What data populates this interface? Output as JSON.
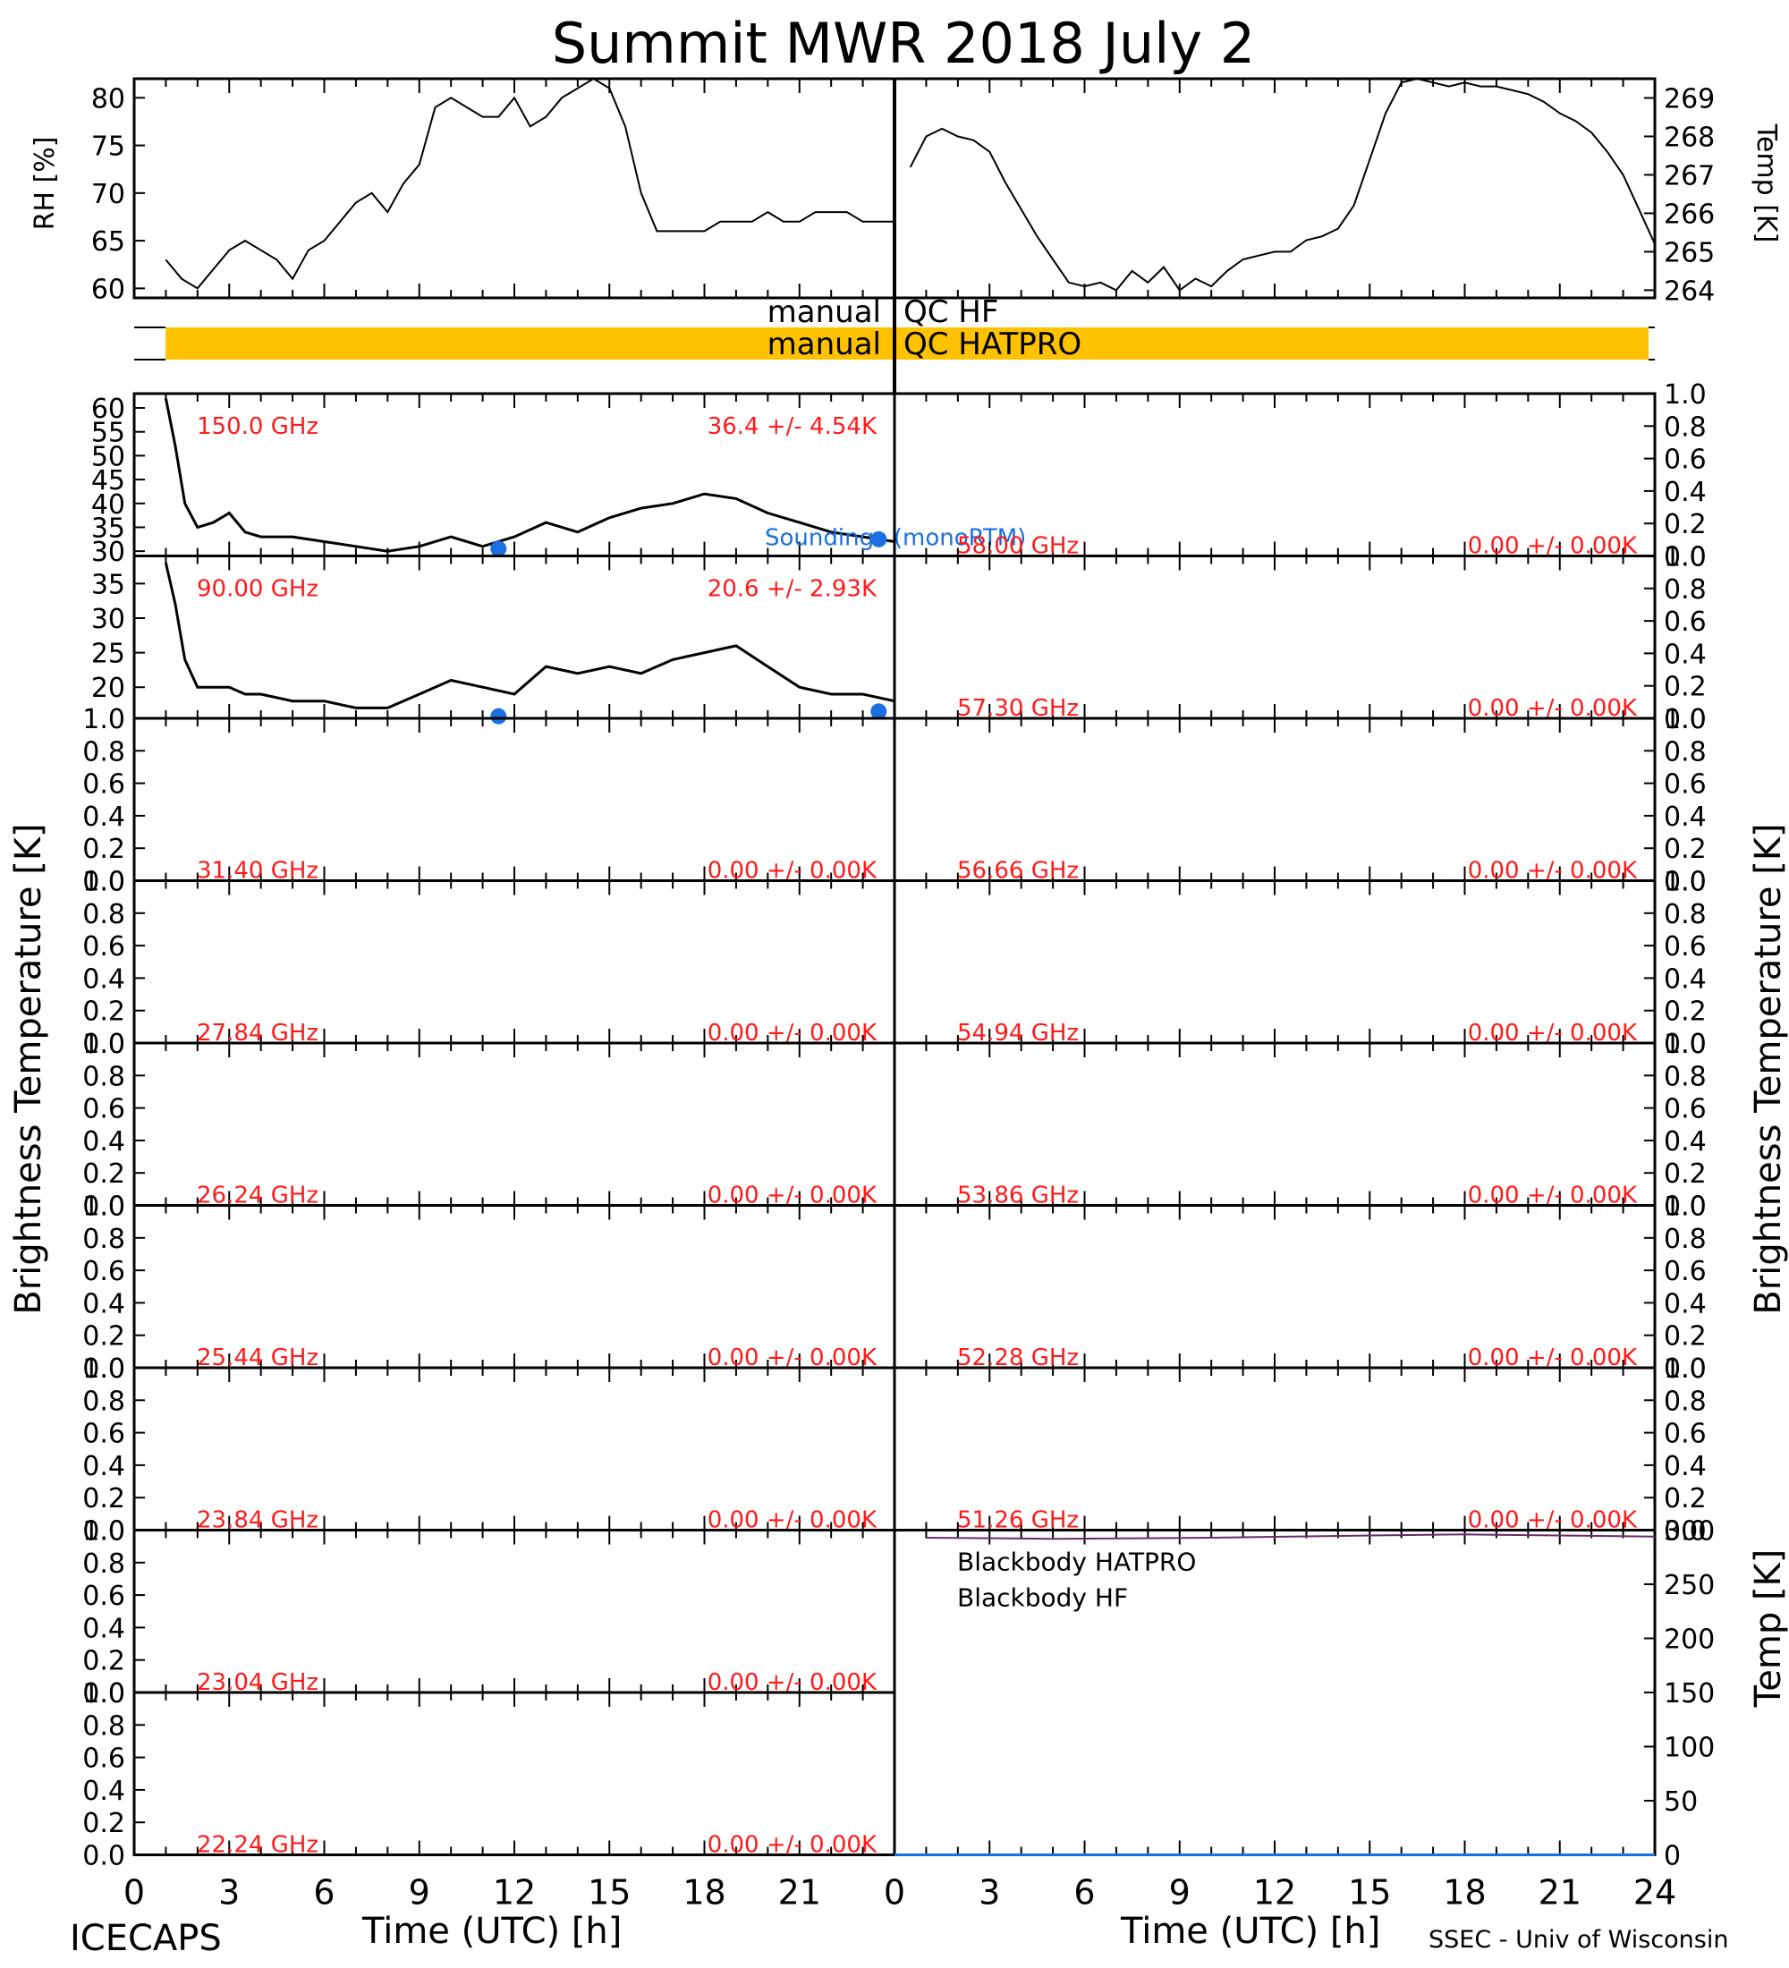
{
  "title": "Summit  MWR  2018  July   2",
  "footer": {
    "left": "ICECAPS",
    "xlabel": "Time (UTC) [h]",
    "right": "SSEC - Univ of Wisconsin"
  },
  "axis_labels": {
    "rh": "RH [%]",
    "temp_top": "Temp [K]",
    "brightness_left": "Brightness Temperature [K]",
    "brightness_right": "Brightness Temperature [K]",
    "temp_bottom": "Temp [K]"
  },
  "qc": {
    "hf_left": "manual",
    "hf_right": "QC HF",
    "hatpro_left": "manual",
    "hatpro_right": "QC HATPRO",
    "bar_color": "#ffc200"
  },
  "x_ticks": [
    "0",
    "3",
    "6",
    "9",
    "12",
    "15",
    "18",
    "21",
    "0",
    "3",
    "6",
    "9",
    "12",
    "15",
    "18",
    "21",
    "24"
  ],
  "labels": {
    "sounding": "Soundings (monoRTM)",
    "bb_hatpro": "Blackbody HATPRO",
    "bb_hf": "Blackbody HF"
  },
  "colors": {
    "data": "#000000",
    "label_red": "#ff1a1a",
    "sounding_blue": "#1b6fe0",
    "bb_hf": "#6b2a6b",
    "bb_hatpro": "#1b6fe0"
  },
  "chart_data": [
    {
      "type": "line",
      "title": "",
      "xlabel": "Time (UTC) [h]",
      "ylabel": "RH [%]",
      "xlim": [
        0,
        24
      ],
      "ylim": [
        59,
        82
      ],
      "yticks": [
        "60",
        "65",
        "70",
        "75",
        "80"
      ],
      "series": [
        {
          "x": [
            1,
            1.5,
            2,
            2.5,
            3,
            3.5,
            4,
            4.5,
            5,
            5.5,
            6,
            6.5,
            7,
            7.5,
            8,
            8.5,
            9,
            9.5,
            10,
            10.5,
            11,
            11.5,
            12,
            12.5,
            13,
            13.5,
            14,
            14.5,
            15,
            15.5,
            16,
            16.5,
            17,
            17.5,
            18,
            18.5,
            19,
            19.5,
            20,
            20.5,
            21,
            21.5,
            22,
            22.5,
            23,
            23.5,
            24
          ],
          "values": [
            63,
            61,
            60,
            62,
            64,
            65,
            64,
            63,
            61,
            64,
            65,
            67,
            69,
            70,
            68,
            71,
            73,
            79,
            80,
            79,
            78,
            78,
            80,
            77,
            78,
            80,
            81,
            82,
            81,
            77,
            70,
            66,
            66,
            66,
            66,
            67,
            67,
            67,
            68,
            67,
            67,
            68,
            68,
            68,
            67,
            67,
            67
          ]
        }
      ]
    },
    {
      "type": "line",
      "title": "",
      "xlabel": "Time (UTC) [h]",
      "ylabel": "Temp [K]",
      "xlim": [
        0,
        24
      ],
      "ylim": [
        263.8,
        269.5
      ],
      "yticks": [
        "264",
        "265",
        "266",
        "267",
        "268",
        "269"
      ],
      "series": [
        {
          "x": [
            0.5,
            1,
            1.5,
            2,
            2.5,
            3,
            3.5,
            4,
            4.5,
            5,
            5.5,
            6,
            6.5,
            7,
            7.5,
            8,
            8.5,
            9,
            9.5,
            10,
            10.5,
            11,
            11.5,
            12,
            12.5,
            13,
            13.5,
            14,
            14.5,
            15,
            15.5,
            16,
            16.5,
            17,
            17.5,
            18,
            18.5,
            19,
            19.5,
            20,
            20.5,
            21,
            21.5,
            22,
            22.5,
            23,
            23.5,
            24
          ],
          "values": [
            267.2,
            268,
            268.2,
            268,
            267.9,
            267.6,
            266.8,
            266.1,
            265.4,
            264.8,
            264.2,
            264.1,
            264.2,
            264.0,
            264.5,
            264.2,
            264.6,
            264.0,
            264.3,
            264.1,
            264.5,
            264.8,
            264.9,
            265.0,
            265.0,
            265.3,
            265.4,
            265.6,
            266.2,
            267.4,
            268.6,
            269.4,
            269.5,
            269.4,
            269.3,
            269.4,
            269.3,
            269.3,
            269.2,
            269.1,
            268.9,
            268.6,
            268.4,
            268.1,
            267.6,
            267,
            266.1,
            265.2
          ]
        }
      ]
    },
    {
      "type": "line",
      "title": "",
      "annotation_left": "150.0 GHz",
      "annotation_right": "36.4 +/-  4.54K",
      "xlim": [
        0,
        24
      ],
      "ylim": [
        29,
        63
      ],
      "yticks": [
        "30",
        "35",
        "40",
        "45",
        "50",
        "55",
        "60"
      ],
      "series": [
        {
          "x": [
            1,
            1.3,
            1.6,
            2,
            2.5,
            3,
            3.5,
            4,
            5,
            6,
            7,
            8,
            9,
            10,
            11,
            12,
            13,
            14,
            15,
            16,
            17,
            18,
            19,
            20,
            21,
            22,
            23,
            24
          ],
          "values": [
            62,
            52,
            40,
            35,
            36,
            38,
            34,
            33,
            33,
            32,
            31,
            30,
            31,
            33,
            31,
            33,
            36,
            34,
            37,
            39,
            40,
            42,
            41,
            38,
            36,
            34,
            33,
            32
          ]
        },
        {
          "name": "Soundings (monoRTM)",
          "x": [
            11.5,
            23.5
          ],
          "values": [
            30.5,
            32.5
          ]
        }
      ]
    },
    {
      "type": "line",
      "title": "",
      "annotation_left": "90.00 GHz",
      "annotation_right": "20.6 +/-  2.93K",
      "xlim": [
        0,
        24
      ],
      "ylim": [
        15.5,
        39
      ],
      "yticks": [
        "20",
        "25",
        "30",
        "35"
      ],
      "series": [
        {
          "x": [
            1,
            1.3,
            1.6,
            2,
            2.5,
            3,
            3.5,
            4,
            5,
            6,
            7,
            8,
            9,
            10,
            11,
            12,
            13,
            14,
            15,
            16,
            17,
            18,
            19,
            20,
            21,
            22,
            23,
            24
          ],
          "values": [
            38,
            32,
            24,
            20,
            20,
            20,
            19,
            19,
            18,
            18,
            17,
            17,
            19,
            21,
            20,
            19,
            23,
            22,
            23,
            22,
            24,
            25,
            26,
            23,
            20,
            19,
            19,
            18
          ]
        },
        {
          "name": "Soundings (monoRTM)",
          "x": [
            11.5,
            23.5
          ],
          "values": [
            15.8,
            16.5
          ]
        }
      ]
    },
    {
      "type": "line",
      "title": "",
      "annotation_left": "31.40 GHz",
      "annotation_right": "0.00 +/-  0.00K",
      "ylim": [
        0,
        1
      ],
      "values": []
    },
    {
      "type": "line",
      "title": "",
      "annotation_left": "27.84 GHz",
      "annotation_right": "0.00 +/-  0.00K",
      "ylim": [
        0,
        1
      ],
      "values": []
    },
    {
      "type": "line",
      "title": "",
      "annotation_left": "26.24 GHz",
      "annotation_right": "0.00 +/-  0.00K",
      "ylim": [
        0,
        1
      ],
      "values": []
    },
    {
      "type": "line",
      "title": "",
      "annotation_left": "25.44 GHz",
      "annotation_right": "0.00 +/-  0.00K",
      "ylim": [
        0,
        1
      ],
      "values": []
    },
    {
      "type": "line",
      "title": "",
      "annotation_left": "23.84 GHz",
      "annotation_right": "0.00 +/-  0.00K",
      "ylim": [
        0,
        1
      ],
      "values": []
    },
    {
      "type": "line",
      "title": "",
      "annotation_left": "23.04 GHz",
      "annotation_right": "0.00 +/-  0.00K",
      "ylim": [
        0,
        1
      ],
      "values": []
    },
    {
      "type": "line",
      "title": "",
      "annotation_left": "22.24 GHz",
      "annotation_right": "0.00 +/-  0.00K",
      "ylim": [
        0,
        1
      ],
      "values": []
    },
    {
      "type": "line",
      "title": "",
      "annotation_left": "58.00 GHz",
      "annotation_right": "0.00 +/-  0.00K",
      "ylim": [
        0,
        1
      ],
      "values": []
    },
    {
      "type": "line",
      "title": "",
      "annotation_left": "57.30 GHz",
      "annotation_right": "0.00 +/-  0.00K",
      "ylim": [
        0,
        1
      ],
      "values": []
    },
    {
      "type": "line",
      "title": "",
      "annotation_left": "56.66 GHz",
      "annotation_right": "0.00 +/-  0.00K",
      "ylim": [
        0,
        1
      ],
      "values": []
    },
    {
      "type": "line",
      "title": "",
      "annotation_left": "54.94 GHz",
      "annotation_right": "0.00 +/-  0.00K",
      "ylim": [
        0,
        1
      ],
      "values": []
    },
    {
      "type": "line",
      "title": "",
      "annotation_left": "53.86 GHz",
      "annotation_right": "0.00 +/-  0.00K",
      "ylim": [
        0,
        1
      ],
      "values": []
    },
    {
      "type": "line",
      "title": "",
      "annotation_left": "52.28 GHz",
      "annotation_right": "0.00 +/-  0.00K",
      "ylim": [
        0,
        1
      ],
      "values": []
    },
    {
      "type": "line",
      "title": "",
      "annotation_left": "51.26 GHz",
      "annotation_right": "0.00 +/-  0.00K",
      "ylim": [
        0,
        1
      ],
      "values": []
    },
    {
      "type": "line",
      "title": "",
      "ylabel": "Temp [K]",
      "xlim": [
        0,
        24
      ],
      "ylim": [
        0,
        300
      ],
      "yticks": [
        "0",
        "50",
        "100",
        "150",
        "200",
        "250",
        "300"
      ],
      "series": [
        {
          "name": "Blackbody HF",
          "x": [
            1,
            5,
            10,
            15,
            18,
            21,
            24
          ],
          "values": [
            293,
            292,
            293,
            295,
            296,
            295,
            294
          ]
        },
        {
          "name": "Blackbody HATPRO",
          "x": [
            0,
            24
          ],
          "values": [
            0,
            0
          ]
        }
      ]
    }
  ],
  "empty_yticks": [
    "0.0",
    "0.2",
    "0.4",
    "0.6",
    "0.8",
    "1.0"
  ]
}
